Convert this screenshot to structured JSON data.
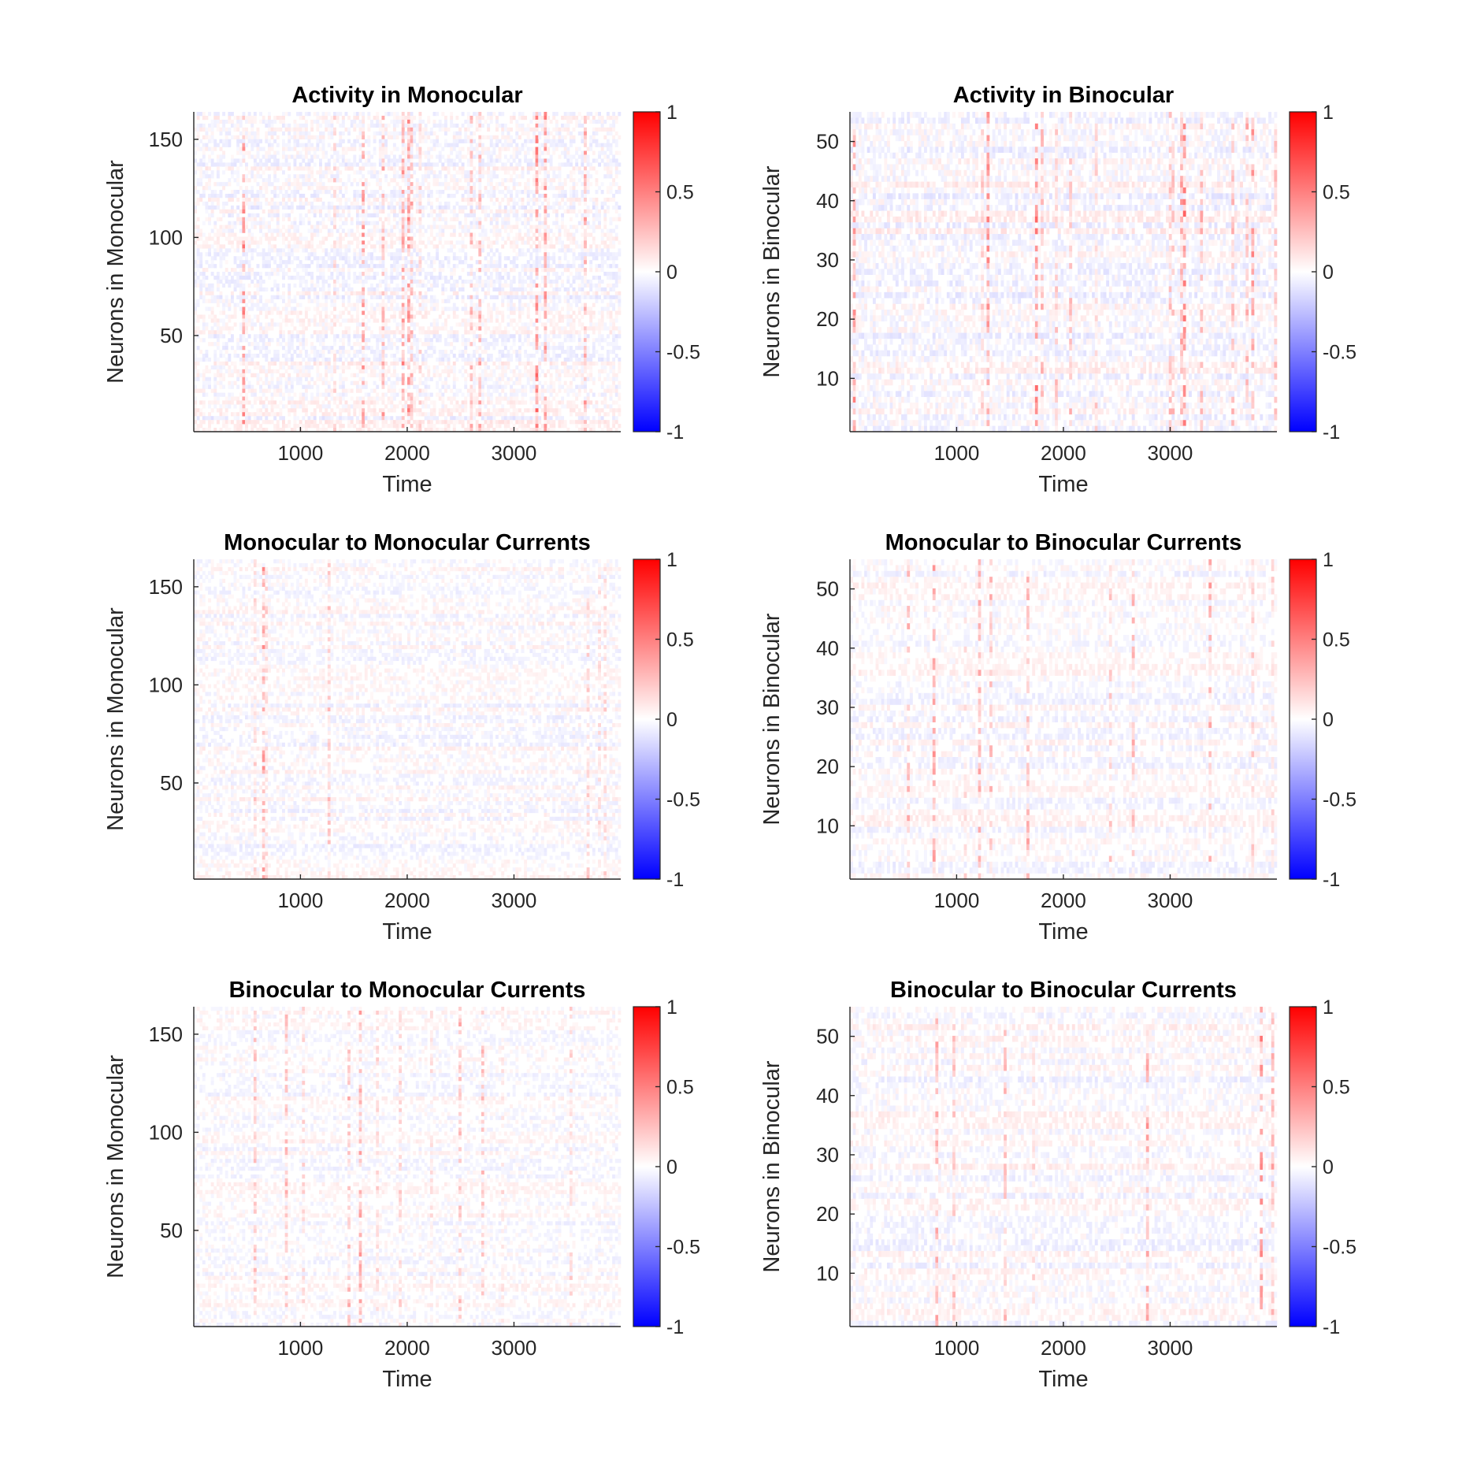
{
  "colormap": {
    "negative": "#0000ff",
    "zero": "#ffffff",
    "positive": "#ff0000"
  },
  "chart_data": [
    {
      "type": "heatmap",
      "title": "Activity in Monocular",
      "xlabel": "Time",
      "ylabel": "Neurons in Monocular",
      "xlim": [
        1,
        4000
      ],
      "ylim": [
        1,
        164
      ],
      "xticks": [
        1000,
        2000,
        3000
      ],
      "yticks": [
        50,
        100,
        150
      ],
      "clim": [
        -1,
        1
      ],
      "colorbar_ticks": [
        -1,
        -0.5,
        0,
        0.5,
        1
      ],
      "intensity": 0.55
    },
    {
      "type": "heatmap",
      "title": "Activity in Binocular",
      "xlabel": "Time",
      "ylabel": "Neurons in Binocular",
      "xlim": [
        1,
        4000
      ],
      "ylim": [
        1,
        55
      ],
      "xticks": [
        1000,
        2000,
        3000
      ],
      "yticks": [
        10,
        20,
        30,
        40,
        50
      ],
      "clim": [
        -1,
        1
      ],
      "colorbar_ticks": [
        -1,
        -0.5,
        0,
        0.5,
        1
      ],
      "intensity": 0.6
    },
    {
      "type": "heatmap",
      "title": "Monocular to Monocular Currents",
      "xlabel": "Time",
      "ylabel": "Neurons in Monocular",
      "xlim": [
        1,
        4000
      ],
      "ylim": [
        1,
        164
      ],
      "xticks": [
        1000,
        2000,
        3000
      ],
      "yticks": [
        50,
        100,
        150
      ],
      "clim": [
        -1,
        1
      ],
      "colorbar_ticks": [
        -1,
        -0.5,
        0,
        0.5,
        1
      ],
      "intensity": 0.45
    },
    {
      "type": "heatmap",
      "title": "Monocular to Binocular Currents",
      "xlabel": "Time",
      "ylabel": "Neurons in Binocular",
      "xlim": [
        1,
        4000
      ],
      "ylim": [
        1,
        55
      ],
      "xticks": [
        1000,
        2000,
        3000
      ],
      "yticks": [
        10,
        20,
        30,
        40,
        50
      ],
      "clim": [
        -1,
        1
      ],
      "colorbar_ticks": [
        -1,
        -0.5,
        0,
        0.5,
        1
      ],
      "intensity": 0.45
    },
    {
      "type": "heatmap",
      "title": "Binocular to Monocular Currents",
      "xlabel": "Time",
      "ylabel": "Neurons in Monocular",
      "xlim": [
        1,
        4000
      ],
      "ylim": [
        1,
        164
      ],
      "xticks": [
        1000,
        2000,
        3000
      ],
      "yticks": [
        50,
        100,
        150
      ],
      "clim": [
        -1,
        1
      ],
      "colorbar_ticks": [
        -1,
        -0.5,
        0,
        0.5,
        1
      ],
      "intensity": 0.4
    },
    {
      "type": "heatmap",
      "title": "Binocular to Binocular Currents",
      "xlabel": "Time",
      "ylabel": "Neurons in Binocular",
      "xlim": [
        1,
        4000
      ],
      "ylim": [
        1,
        55
      ],
      "xticks": [
        1000,
        2000,
        3000
      ],
      "yticks": [
        10,
        20,
        30,
        40,
        50
      ],
      "clim": [
        -1,
        1
      ],
      "colorbar_ticks": [
        -1,
        -0.5,
        0,
        0.5,
        1
      ],
      "intensity": 0.5
    }
  ]
}
